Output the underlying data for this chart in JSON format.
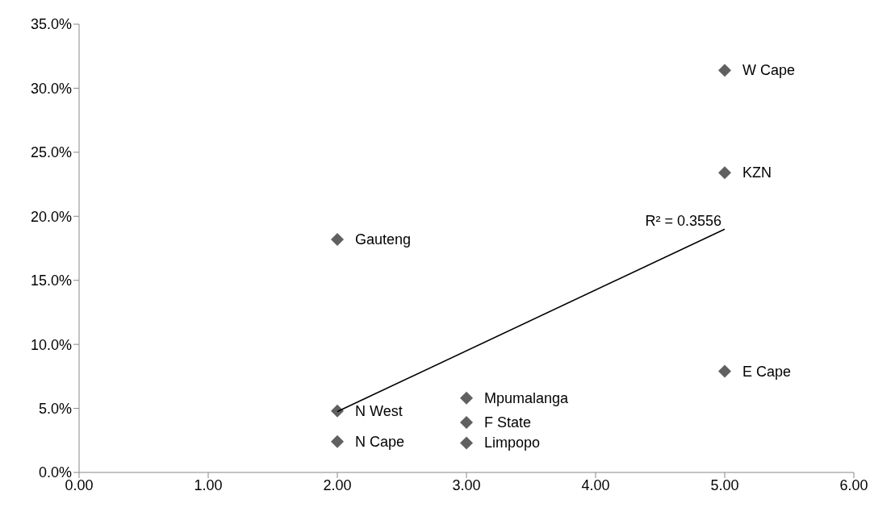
{
  "chart_data": {
    "type": "scatter",
    "series": [
      {
        "color": "#606060",
        "marker": "diamond",
        "x": [
          5,
          5,
          2,
          5,
          3,
          3,
          3,
          2,
          2
        ],
        "values": [
          31.4,
          23.4,
          18.2,
          7.9,
          5.8,
          3.9,
          2.3,
          4.8,
          2.4
        ]
      },
      {
        "type": "line",
        "color": "#000000",
        "marker": "none",
        "x": [
          2,
          5
        ],
        "values": [
          4.75,
          19.0
        ]
      }
    ],
    "grid": false,
    "xlim": [
      0,
      6
    ],
    "xticks": [
      {
        "value": 0,
        "label": "0.00"
      },
      {
        "value": 1,
        "label": "1.00"
      },
      {
        "value": 2,
        "label": "2.00"
      },
      {
        "value": 3,
        "label": "3.00"
      },
      {
        "value": 4,
        "label": "4.00"
      },
      {
        "value": 5,
        "label": "5.00"
      },
      {
        "value": 6,
        "label": "6.00"
      }
    ],
    "ylim": [
      0,
      35
    ],
    "yticks": [
      {
        "value": 0,
        "label": "0.0%"
      },
      {
        "value": 5,
        "label": "5.0%"
      },
      {
        "value": 10,
        "label": "10.0%"
      },
      {
        "value": 15,
        "label": "15.0%"
      },
      {
        "value": 20,
        "label": "20.0%"
      },
      {
        "value": 25,
        "label": "25.0%"
      },
      {
        "value": 30,
        "label": "30.0%"
      },
      {
        "value": 35,
        "label": "35.0%"
      }
    ],
    "annotations": [
      {
        "text": "W Cape",
        "x": 5,
        "y": 31.4
      },
      {
        "text": "KZN",
        "x": 5,
        "y": 23.4
      },
      {
        "text": "Gauteng",
        "x": 2,
        "y": 18.2
      },
      {
        "text": "E Cape",
        "x": 5,
        "y": 7.9
      },
      {
        "text": "Mpumalanga",
        "x": 3,
        "y": 5.8
      },
      {
        "text": "F State",
        "x": 3,
        "y": 3.9
      },
      {
        "text": "Limpopo",
        "x": 3,
        "y": 2.3
      },
      {
        "text": "N West",
        "x": 2,
        "y": 4.8
      },
      {
        "text": "N Cape",
        "x": 2,
        "y": 2.4
      },
      {
        "text": "R² = 0.3556",
        "x": 5,
        "y": 19.0
      }
    ]
  }
}
